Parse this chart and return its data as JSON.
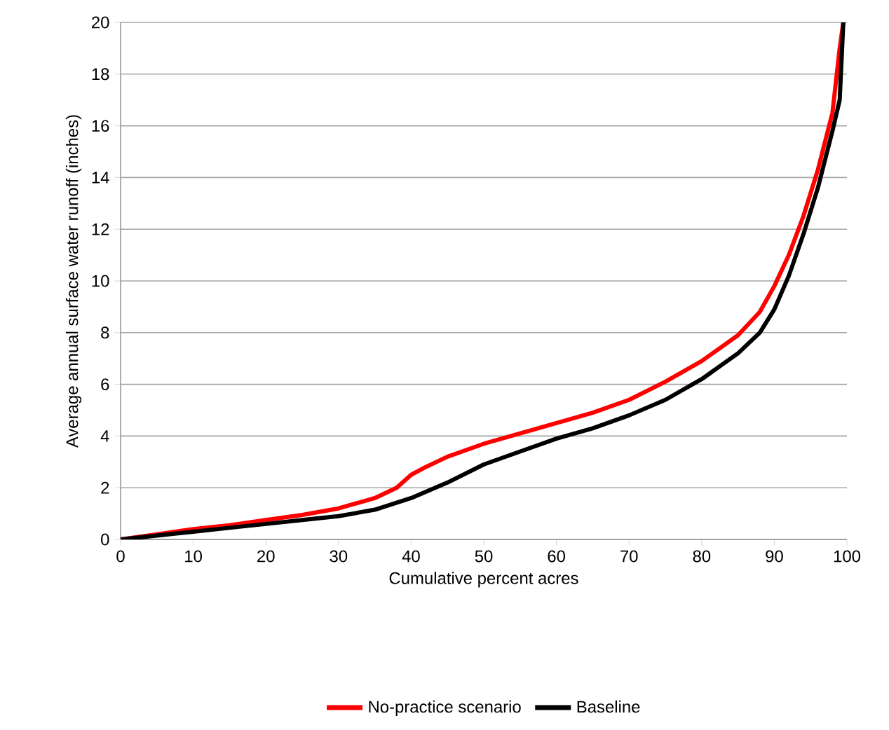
{
  "chart_data": {
    "type": "line",
    "xlabel": "Cumulative percent acres",
    "ylabel": "Average annual surface water runoff (inches)",
    "xlim": [
      0,
      100
    ],
    "xticks": [
      0,
      10,
      20,
      30,
      40,
      50,
      60,
      70,
      80,
      90,
      100
    ],
    "ylim": [
      0,
      20
    ],
    "yticks": [
      0,
      2,
      4,
      6,
      8,
      10,
      12,
      14,
      16,
      18,
      20
    ],
    "grid": "y",
    "legend": "bottom",
    "marker": "none",
    "line_style": "solid",
    "series": [
      {
        "name": "No-practice scenario",
        "color": "#ff0000",
        "x": [
          0,
          5,
          10,
          15,
          20,
          25,
          30,
          35,
          38,
          40,
          42,
          45,
          50,
          55,
          60,
          65,
          70,
          75,
          80,
          85,
          88,
          90,
          92,
          94,
          96,
          98,
          99,
          99.5
        ],
        "values": [
          0,
          0.2,
          0.4,
          0.55,
          0.75,
          0.95,
          1.2,
          1.6,
          2.0,
          2.5,
          2.8,
          3.2,
          3.7,
          4.1,
          4.5,
          4.9,
          5.4,
          6.1,
          6.9,
          7.9,
          8.8,
          9.8,
          11,
          12.5,
          14.3,
          16.5,
          19,
          20
        ]
      },
      {
        "name": "Baseline",
        "color": "#000000",
        "x": [
          0,
          5,
          10,
          15,
          20,
          25,
          30,
          35,
          40,
          45,
          50,
          55,
          60,
          65,
          70,
          75,
          80,
          85,
          88,
          90,
          92,
          94,
          96,
          98,
          99,
          99.5
        ],
        "values": [
          0,
          0.15,
          0.3,
          0.45,
          0.6,
          0.75,
          0.9,
          1.15,
          1.6,
          2.2,
          2.9,
          3.4,
          3.9,
          4.3,
          4.8,
          5.4,
          6.2,
          7.2,
          8.0,
          8.9,
          10.2,
          11.8,
          13.6,
          15.8,
          17,
          20
        ]
      }
    ]
  }
}
